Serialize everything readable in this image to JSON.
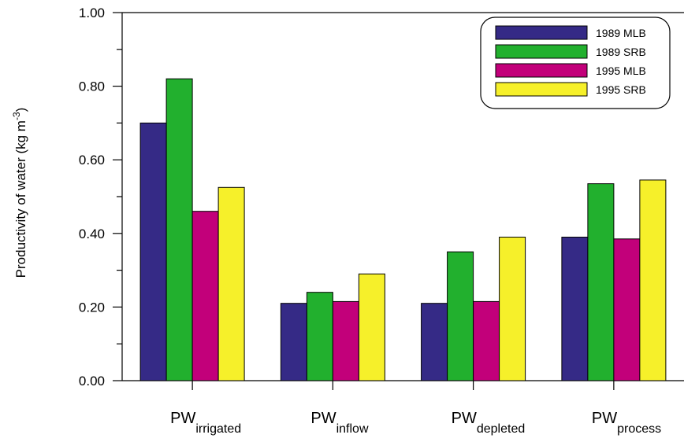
{
  "chart_data": {
    "type": "bar",
    "title": "",
    "ylabel": {
      "text": "Productivity of water (kg m",
      "sup": "-3",
      "suffix": ")"
    },
    "ylim": [
      0,
      1.0
    ],
    "yticks": [
      "0.00",
      "0.20",
      "0.40",
      "0.60",
      "0.80",
      "1.00"
    ],
    "categories": [
      {
        "main": "PW",
        "sub": "irrigated"
      },
      {
        "main": "PW",
        "sub": "inflow"
      },
      {
        "main": "PW",
        "sub": "depleted"
      },
      {
        "main": "PW",
        "sub": "process"
      }
    ],
    "series": [
      {
        "name": "1989 MLB",
        "color": "#352a86",
        "values": [
          0.7,
          0.21,
          0.21,
          0.39
        ]
      },
      {
        "name": "1989 SRB",
        "color": "#22b02e",
        "values": [
          0.82,
          0.24,
          0.35,
          0.535
        ]
      },
      {
        "name": "1995 MLB",
        "color": "#c2007a",
        "values": [
          0.46,
          0.215,
          0.215,
          0.385
        ]
      },
      {
        "name": "1995 SRB",
        "color": "#f6f02a",
        "values": [
          0.525,
          0.29,
          0.39,
          0.545
        ]
      }
    ],
    "legend_position": "top-right",
    "grid": false
  }
}
